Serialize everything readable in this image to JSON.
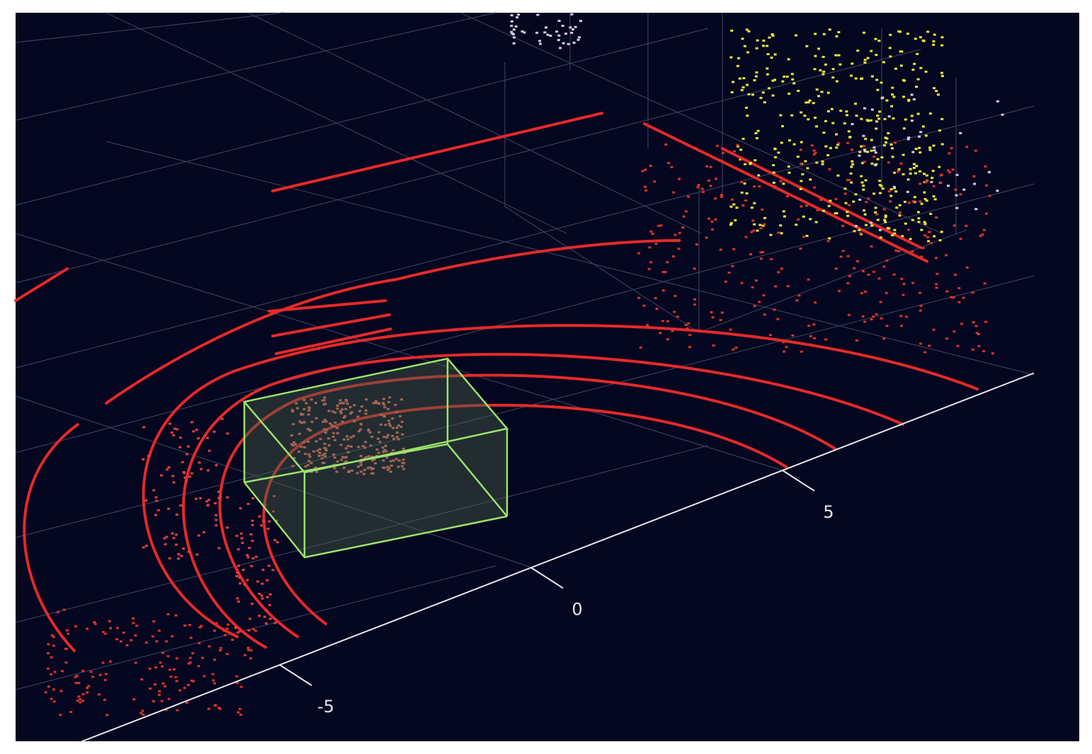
{
  "chart_data": {
    "type": "scatter3d",
    "xlim": [
      -9,
      10
    ],
    "xticks": [
      -5,
      0,
      5
    ]
  }
}
